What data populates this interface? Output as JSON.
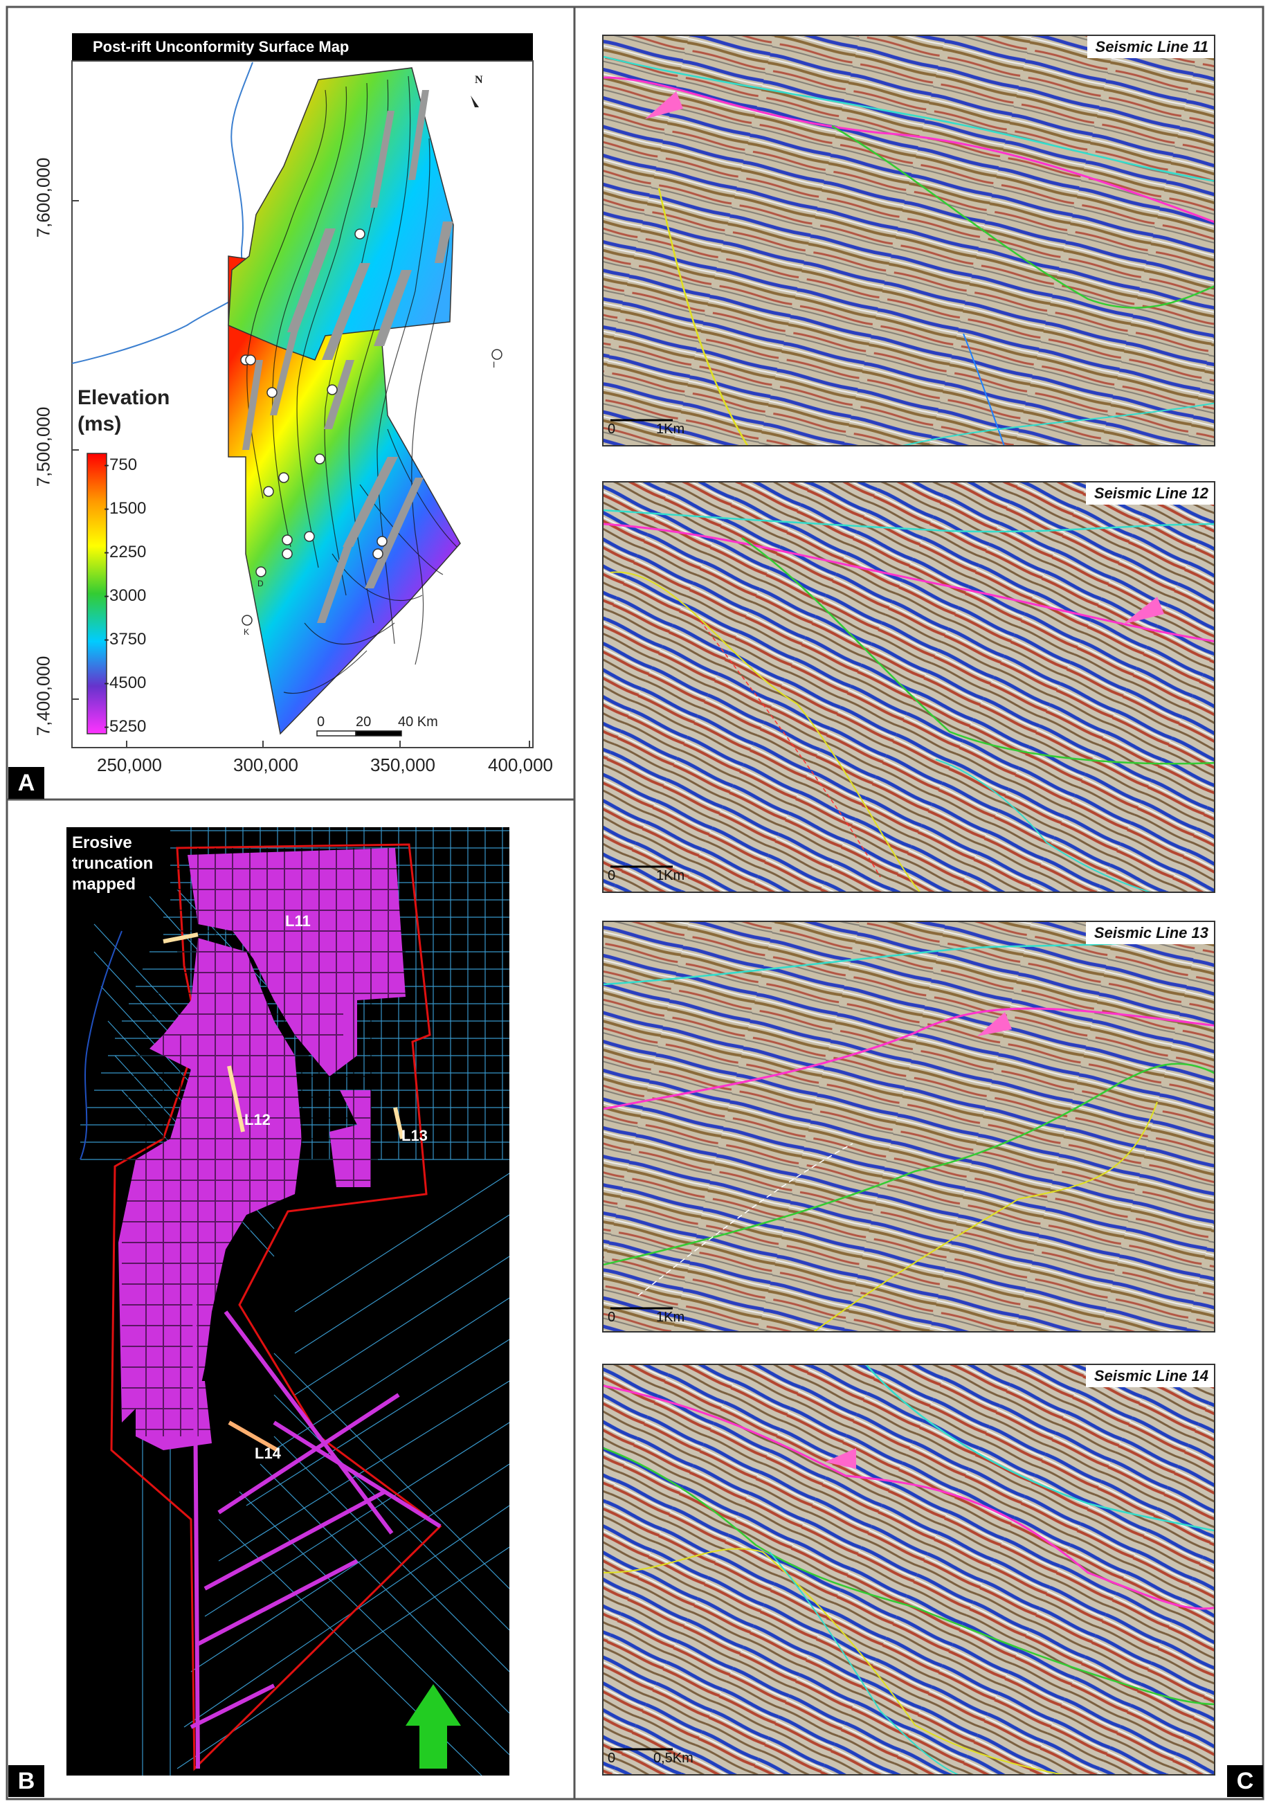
{
  "panel_a": {
    "letter": "A",
    "title": "Post-rift Unconformity Surface Map",
    "north": "N",
    "y_ticks": [
      "7,600,000",
      "7,500,000",
      "7,400,000"
    ],
    "x_ticks": [
      "250,000",
      "300,000",
      "350,000",
      "400,000"
    ],
    "legend_title_1": "Elevation",
    "legend_title_2": "(ms)",
    "legend_values": [
      "-750",
      "-1500",
      "-2250",
      "-3000",
      "-3750",
      "-4500",
      "-5250"
    ],
    "legend_colors": [
      "#ff0000",
      "#ff9900",
      "#ffff00",
      "#33cc33",
      "#00ccff",
      "#6633cc",
      "#ff33ff"
    ],
    "scale": [
      "0",
      "20",
      "40 Km"
    ],
    "well_labels": [
      "I",
      "D",
      "K"
    ]
  },
  "panel_b": {
    "letter": "B",
    "text_1": "Erosive",
    "text_2": "truncation",
    "text_3": "mapped",
    "lines": [
      "L11",
      "L12",
      "L13",
      "L14"
    ]
  },
  "panel_c": {
    "letter": "C",
    "sections": [
      {
        "title": "Seismic Line 11",
        "scale_0": "0",
        "scale_1": "1Km"
      },
      {
        "title": "Seismic Line 12",
        "scale_0": "0",
        "scale_1": "1Km"
      },
      {
        "title": "Seismic Line 13",
        "scale_0": "0",
        "scale_1": "1Km"
      },
      {
        "title": "Seismic Line 14",
        "scale_0": "0",
        "scale_1": "0,5Km"
      }
    ]
  }
}
